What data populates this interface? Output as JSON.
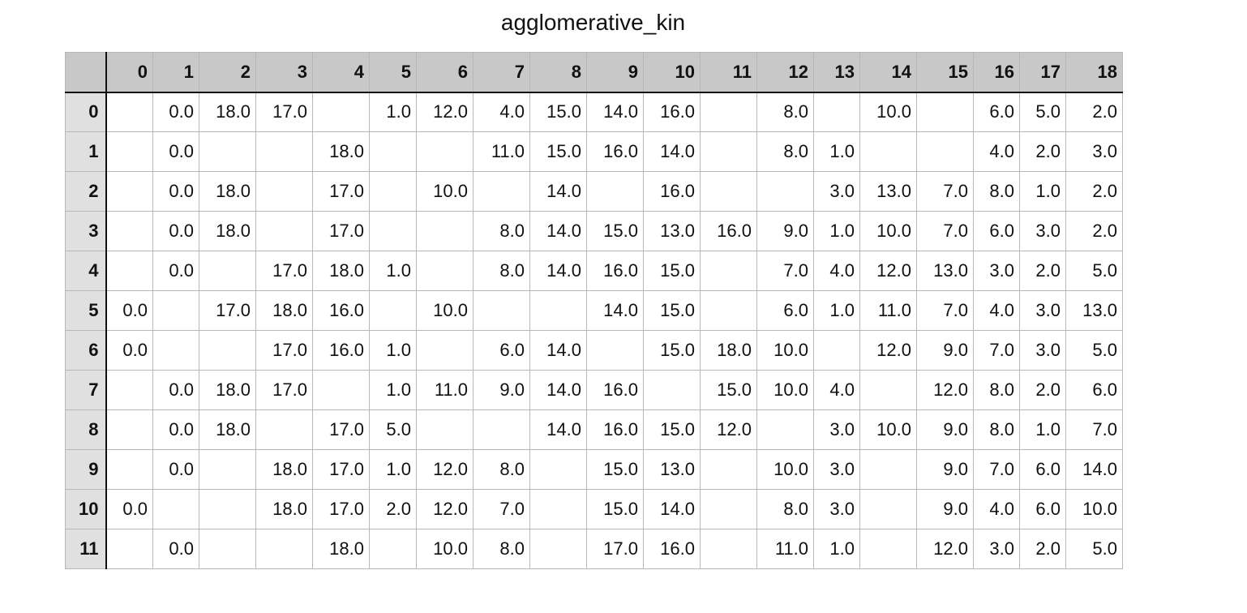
{
  "chart_data": {
    "type": "table",
    "title": "agglomerative_kin",
    "columns": [
      "0",
      "1",
      "2",
      "3",
      "4",
      "5",
      "6",
      "7",
      "8",
      "9",
      "10",
      "11",
      "12",
      "13",
      "14",
      "15",
      "16",
      "17",
      "18"
    ],
    "rows": [
      {
        "label": "0",
        "cells": [
          "",
          "0.0",
          "18.0",
          "17.0",
          "",
          "1.0",
          "12.0",
          "4.0",
          "15.0",
          "14.0",
          "16.0",
          "",
          "8.0",
          "",
          "10.0",
          "",
          "6.0",
          "5.0",
          "2.0"
        ]
      },
      {
        "label": "1",
        "cells": [
          "",
          "0.0",
          "",
          "",
          "18.0",
          "",
          "",
          "11.0",
          "15.0",
          "16.0",
          "14.0",
          "",
          "8.0",
          "1.0",
          "",
          "",
          "4.0",
          "2.0",
          "3.0"
        ]
      },
      {
        "label": "2",
        "cells": [
          "",
          "0.0",
          "18.0",
          "",
          "17.0",
          "",
          "10.0",
          "",
          "14.0",
          "",
          "16.0",
          "",
          "",
          "3.0",
          "13.0",
          "7.0",
          "8.0",
          "1.0",
          "2.0"
        ]
      },
      {
        "label": "3",
        "cells": [
          "",
          "0.0",
          "18.0",
          "",
          "17.0",
          "",
          "",
          "8.0",
          "14.0",
          "15.0",
          "13.0",
          "16.0",
          "9.0",
          "1.0",
          "10.0",
          "7.0",
          "6.0",
          "3.0",
          "2.0"
        ]
      },
      {
        "label": "4",
        "cells": [
          "",
          "0.0",
          "",
          "17.0",
          "18.0",
          "1.0",
          "",
          "8.0",
          "14.0",
          "16.0",
          "15.0",
          "",
          "7.0",
          "4.0",
          "12.0",
          "13.0",
          "3.0",
          "2.0",
          "5.0"
        ]
      },
      {
        "label": "5",
        "cells": [
          "0.0",
          "",
          "17.0",
          "18.0",
          "16.0",
          "",
          "10.0",
          "",
          "",
          "14.0",
          "15.0",
          "",
          "6.0",
          "1.0",
          "11.0",
          "7.0",
          "4.0",
          "3.0",
          "13.0"
        ]
      },
      {
        "label": "6",
        "cells": [
          "0.0",
          "",
          "",
          "17.0",
          "16.0",
          "1.0",
          "",
          "6.0",
          "14.0",
          "",
          "15.0",
          "18.0",
          "10.0",
          "",
          "12.0",
          "9.0",
          "7.0",
          "3.0",
          "5.0"
        ]
      },
      {
        "label": "7",
        "cells": [
          "",
          "0.0",
          "18.0",
          "17.0",
          "",
          "1.0",
          "11.0",
          "9.0",
          "14.0",
          "16.0",
          "",
          "15.0",
          "10.0",
          "4.0",
          "",
          "12.0",
          "8.0",
          "2.0",
          "6.0"
        ]
      },
      {
        "label": "8",
        "cells": [
          "",
          "0.0",
          "18.0",
          "",
          "17.0",
          "5.0",
          "",
          "",
          "14.0",
          "16.0",
          "15.0",
          "12.0",
          "",
          "3.0",
          "10.0",
          "9.0",
          "8.0",
          "1.0",
          "7.0"
        ]
      },
      {
        "label": "9",
        "cells": [
          "",
          "0.0",
          "",
          "18.0",
          "17.0",
          "1.0",
          "12.0",
          "8.0",
          "",
          "15.0",
          "13.0",
          "",
          "10.0",
          "3.0",
          "",
          "9.0",
          "7.0",
          "6.0",
          "14.0"
        ]
      },
      {
        "label": "10",
        "cells": [
          "0.0",
          "",
          "",
          "18.0",
          "17.0",
          "2.0",
          "12.0",
          "7.0",
          "",
          "15.0",
          "14.0",
          "",
          "8.0",
          "3.0",
          "",
          "9.0",
          "4.0",
          "6.0",
          "10.0"
        ]
      },
      {
        "label": "11",
        "cells": [
          "",
          "0.0",
          "",
          "",
          "18.0",
          "",
          "10.0",
          "8.0",
          "",
          "17.0",
          "16.0",
          "",
          "11.0",
          "1.0",
          "",
          "12.0",
          "3.0",
          "2.0",
          "5.0"
        ]
      }
    ]
  }
}
